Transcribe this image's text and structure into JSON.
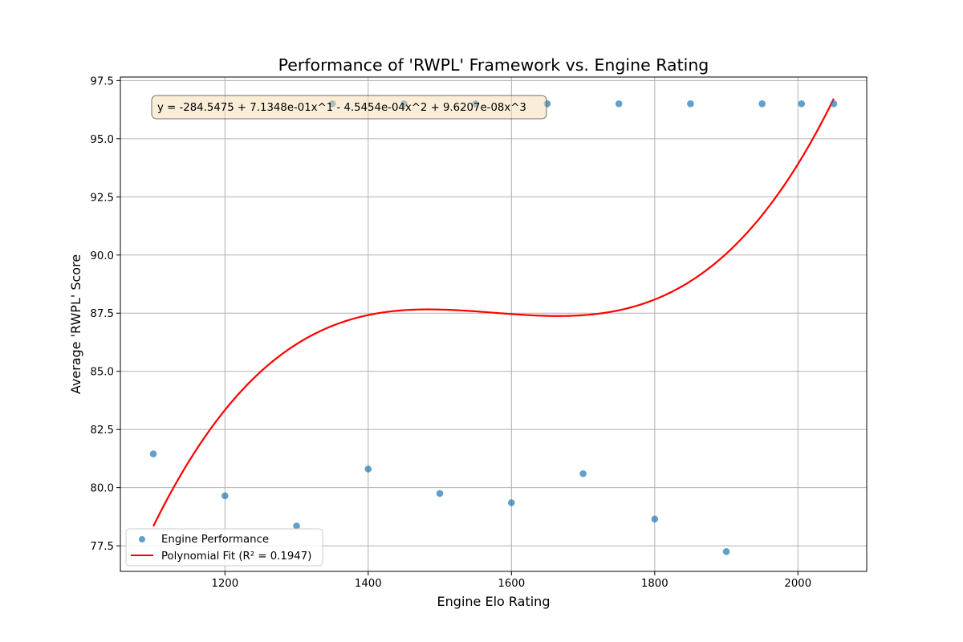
{
  "chart_data": {
    "type": "scatter",
    "title": "Performance of 'RWPL' Framework vs. Engine Rating",
    "xlabel": "Engine Elo Rating",
    "ylabel": "Average 'RWPL' Score",
    "xlim": [
      1054,
      2096
    ],
    "ylim": [
      76.4,
      97.65
    ],
    "xticks": [
      1200,
      1400,
      1600,
      1800,
      2000
    ],
    "xtick_labels": [
      "1200",
      "1400",
      "1600",
      "1800",
      "2000"
    ],
    "yticks": [
      77.5,
      80.0,
      82.5,
      85.0,
      87.5,
      90.0,
      92.5,
      95.0,
      97.5
    ],
    "ytick_labels": [
      "77.5",
      "80.0",
      "82.5",
      "85.0",
      "87.5",
      "90.0",
      "92.5",
      "95.0",
      "97.5"
    ],
    "grid": true,
    "legend_position": "lower-left",
    "annotation": "y = -284.5475 + 7.1348e-01x^1 - 4.5454e-04x^2 + 9.6207e-08x^3",
    "series": [
      {
        "name": "Engine Performance",
        "kind": "scatter",
        "color": "#1f77b4",
        "x": [
          1100,
          1200,
          1300,
          1350,
          1400,
          1450,
          1500,
          1550,
          1600,
          1650,
          1700,
          1750,
          1800,
          1850,
          1900,
          1950,
          2005,
          2050
        ],
        "y": [
          81.45,
          79.65,
          78.35,
          96.5,
          80.8,
          96.5,
          79.75,
          96.5,
          79.35,
          96.5,
          80.6,
          96.5,
          78.65,
          96.5,
          77.25,
          96.5,
          96.5,
          96.5
        ]
      },
      {
        "name": "Polynomial Fit (R² = 0.1947)",
        "kind": "line",
        "color": "#ff0000",
        "coefficients": [
          -284.5475,
          0.71348,
          -0.00045454,
          9.6207e-08
        ],
        "x_range": [
          1100,
          2050
        ]
      }
    ]
  }
}
